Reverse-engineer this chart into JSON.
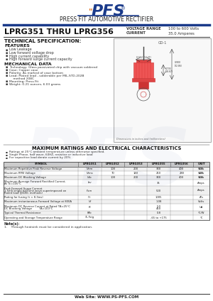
{
  "title_subtitle": "PRESS FIT AUTOMOTIVE RECTIFIER",
  "part_number": "LPRG351 THRU LPRG356",
  "voltage_range_label": "VOLTAGE RANGE",
  "voltage_range_value": "100 to 600 Volts",
  "current_label": "CURRENT",
  "current_value": "35.0 Amperes",
  "section1_title": "TECHNICAL SPECIFICATION:",
  "features_title": "FEATURES",
  "features": [
    "Low Leakage",
    "Low forward voltage drop",
    "High current capability",
    "High forward surge current capacity"
  ],
  "mech_title": "MECHANICAL DATA",
  "mech_items": [
    "Technology: Glass passivated chip with vacuum soldered",
    "Case: Copper case",
    "Polarity: As marked of case bottom",
    "Lead: Plated lead , solderable per MIL-STD-202B\n    method 208C",
    "Mounting: Press Fit",
    "Weight: 0.21 ounces, 6.03 grams"
  ],
  "max_ratings_title": "MAXIMUM RATINGS AND ELECTRICAL CHARACTERISTICS",
  "bullet1": "Ratings at 25°C ambient temperature unless otherwise specified.",
  "bullet2": "Single Phase, half wave, 60HZ, resistive or inductive load",
  "bullet3": "For capacitive load derate current by 20%",
  "table_headers": [
    "SYMBOL",
    "LPRG351",
    "LPRG352",
    "LPRG353",
    "LPRG355",
    "LPRG356",
    "UNIT"
  ],
  "table_rows": [
    {
      "param": "Maximum Repetitive Peak Reverse Voltage",
      "symbol": "Vrrm",
      "values": [
        "100",
        "200",
        "300",
        "400",
        "600"
      ],
      "unit": "Volts"
    },
    {
      "param": "Maximum RMS Voltage",
      "symbol": "Vrms",
      "values": [
        "70",
        "140",
        "210",
        "280",
        "420"
      ],
      "unit": "Volts"
    },
    {
      "param": "Maximum DC Blocking Voltage",
      "symbol": "Vdc",
      "values": [
        "100",
        "200",
        "300",
        "400",
        "600"
      ],
      "unit": "Volts"
    },
    {
      "param": "Maximum Average Forward Rectified Current,\nAt Tc=105°C",
      "symbol": "Iav",
      "values": [
        "",
        "",
        "35",
        "",
        ""
      ],
      "unit": "Amps"
    },
    {
      "param": "Peak Forward Surge Current\n1.5mS single half sine wave superimposed on\nRated load (JEDEC methods)",
      "symbol": "Ifsm",
      "values": [
        "",
        "",
        "500",
        "",
        ""
      ],
      "unit": "Amps"
    },
    {
      "param": "Rating for fusing (t < 8.3ms)",
      "symbol": "I²t",
      "values": [
        "",
        "",
        "1005",
        "",
        ""
      ],
      "unit": "A²s"
    },
    {
      "param": "Maximum instantaneous Forward Voltage at 800A",
      "symbol": "Vf",
      "values": [
        "",
        "",
        "1.08",
        "",
        ""
      ],
      "unit": "Volts"
    },
    {
      "param": "Maximum DC Reverse Current at Rated TA=25°C\nDC Blocking Voltage        TA=100°C",
      "symbol": "IR",
      "values": [
        "",
        "",
        "5.0\n450",
        "",
        ""
      ],
      "unit": "UA"
    },
    {
      "param": "Typical Thermal Resistance",
      "symbol": "Rθc",
      "values": [
        "",
        "",
        "0.8",
        "",
        ""
      ],
      "unit": "°C/W"
    },
    {
      "param": "Operating and Storage Temperature Range",
      "symbol": "TL,Tstg",
      "values": [
        "",
        "",
        "-65 to +175",
        "",
        ""
      ],
      "unit": "°C"
    }
  ],
  "notes_title": "Note(s):",
  "note1": "1.    Through heatsink must be considered in application.",
  "website": "Web Site: WWW.PS-PFS.COM",
  "bg_color": "#ffffff",
  "logo_blue": "#1a3a8a",
  "logo_orange": "#e07020"
}
